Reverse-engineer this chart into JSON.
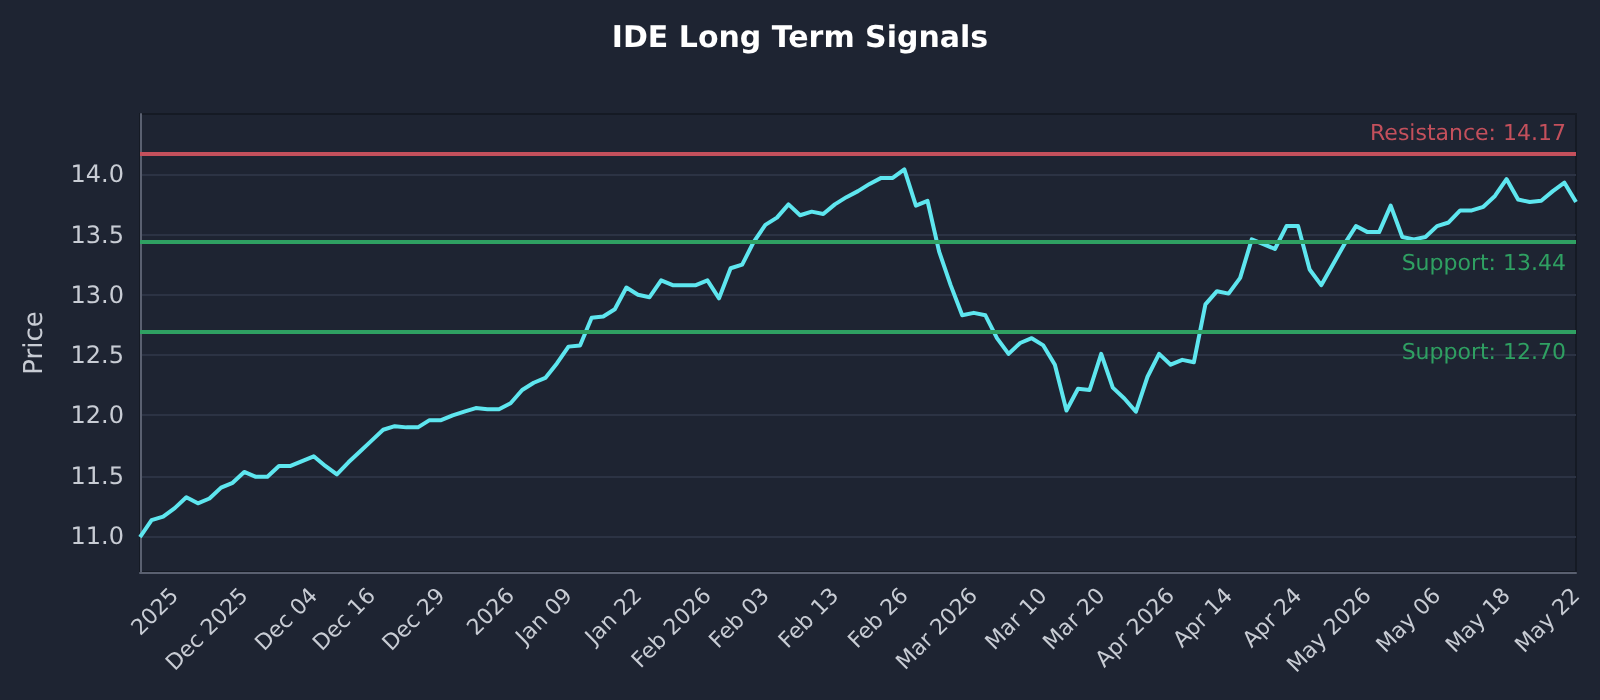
{
  "chart_data": {
    "type": "line",
    "title": "IDE Long Term Signals",
    "ylabel": "Price",
    "categories": [
      null,
      null,
      null,
      "2025",
      null,
      null,
      null,
      null,
      null,
      "Dec 2025",
      null,
      null,
      null,
      null,
      null,
      "Dec 04",
      null,
      null,
      null,
      null,
      "Dec 16",
      null,
      null,
      null,
      null,
      null,
      "Dec 29",
      null,
      null,
      null,
      null,
      null,
      "2026",
      null,
      null,
      null,
      null,
      "Jan 09",
      null,
      null,
      null,
      null,
      null,
      "Jan 22",
      null,
      null,
      null,
      null,
      null,
      "Feb 2026",
      null,
      null,
      null,
      null,
      "Feb 03",
      null,
      null,
      null,
      null,
      null,
      "Feb 13",
      null,
      null,
      null,
      null,
      null,
      "Feb 26",
      null,
      null,
      null,
      null,
      null,
      "Mar 2026",
      null,
      null,
      null,
      null,
      null,
      "Mar 10",
      null,
      null,
      null,
      null,
      "Mar 20",
      null,
      null,
      null,
      null,
      null,
      "Apr 2026",
      null,
      null,
      null,
      null,
      "Apr 14",
      null,
      null,
      null,
      null,
      null,
      "Apr 24",
      null,
      null,
      null,
      null,
      null,
      "May 2026",
      null,
      null,
      null,
      null,
      null,
      "May 06",
      null,
      null,
      null,
      null,
      null,
      "May 18",
      null,
      null,
      null,
      null,
      null,
      "May 22"
    ],
    "series": [
      {
        "color": "#5ee6ef",
        "values": [
          10.99,
          11.13,
          11.16,
          11.23,
          11.32,
          11.27,
          11.31,
          11.4,
          11.44,
          11.53,
          11.49,
          11.49,
          11.58,
          11.58,
          11.62,
          11.66,
          11.58,
          11.51,
          11.61,
          11.7,
          11.79,
          11.88,
          11.91,
          11.9,
          11.9,
          11.96,
          11.96,
          12.0,
          12.03,
          12.06,
          12.05,
          12.05,
          12.1,
          12.21,
          12.27,
          12.31,
          12.43,
          12.57,
          12.58,
          12.81,
          12.82,
          12.88,
          13.06,
          13.0,
          12.98,
          13.12,
          13.08,
          13.08,
          13.08,
          13.12,
          12.97,
          13.22,
          13.25,
          13.44,
          13.58,
          13.64,
          13.75,
          13.66,
          13.69,
          13.67,
          13.75,
          13.81,
          13.86,
          13.92,
          13.97,
          13.97,
          14.04,
          13.74,
          13.78,
          13.36,
          13.08,
          12.83,
          12.85,
          12.83,
          12.64,
          12.51,
          12.6,
          12.64,
          12.58,
          12.42,
          12.04,
          12.22,
          12.21,
          12.51,
          12.23,
          12.14,
          12.03,
          12.32,
          12.51,
          12.42,
          12.46,
          12.44,
          12.92,
          13.03,
          13.01,
          13.14,
          13.46,
          13.42,
          13.38,
          13.57,
          13.57,
          13.21,
          13.08,
          13.25,
          13.42,
          13.57,
          13.52,
          13.52,
          13.74,
          13.48,
          13.46,
          13.48,
          13.57,
          13.6,
          13.7,
          13.7,
          13.73,
          13.82,
          13.96,
          13.79,
          13.77,
          13.78,
          13.86,
          13.93,
          13.77
        ]
      }
    ],
    "ylim": [
      10.7,
      14.5
    ],
    "yticks": [
      {
        "value": 11,
        "label": "11.0"
      },
      {
        "value": 11.5,
        "label": "11.5"
      },
      {
        "value": 12,
        "label": "12.0"
      },
      {
        "value": 12.5,
        "label": "12.5"
      },
      {
        "value": 13,
        "label": "13.0"
      },
      {
        "value": 13.5,
        "label": "13.5"
      },
      {
        "value": 14,
        "label": "14.0"
      }
    ],
    "ref_lines": [
      {
        "axis": "y",
        "value": 14.17,
        "label": "Resistance: 14.17",
        "color": "#c4505c"
      },
      {
        "axis": "y",
        "value": 13.44,
        "label": "Support: 13.44",
        "color": "#2fa062"
      },
      {
        "axis": "y",
        "value": 12.7,
        "label": "Support: 12.70",
        "color": "#2fa062"
      }
    ],
    "grid": "y",
    "marker": "none",
    "line_style": "solid"
  }
}
